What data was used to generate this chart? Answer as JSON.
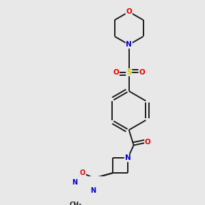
{
  "bg_color": "#e8e8e8",
  "bond_color": "#1a1a1a",
  "atom_colors": {
    "O": "#e60000",
    "N": "#0000cc",
    "S": "#cccc00",
    "C": "#1a1a1a"
  },
  "line_width": 1.4,
  "fig_width": 3.0,
  "fig_height": 3.0,
  "dpi": 100
}
